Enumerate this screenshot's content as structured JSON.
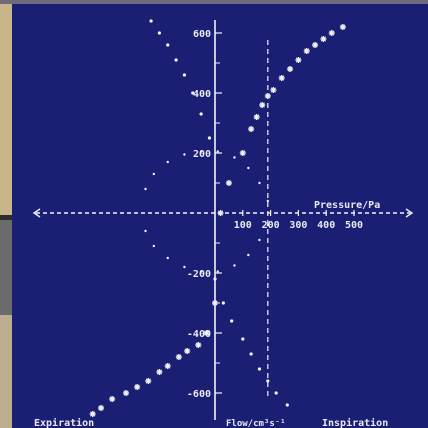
{
  "chart_data": {
    "type": "scatter",
    "title": "",
    "xlabel": "Pressure/Pa",
    "ylabel": "Flow/cm³s⁻¹",
    "bottom_left_label": "Expiration",
    "bottom_right_label": "Inspiration",
    "xlim": [
      -530,
      600
    ],
    "ylim": [
      -680,
      650
    ],
    "x_ticks": [
      100,
      200,
      300,
      400,
      500
    ],
    "y_ticks": [
      600,
      400,
      200,
      -200,
      -400,
      -600
    ],
    "x_tick_labels": [
      "100",
      "200",
      "300",
      "400",
      "500"
    ],
    "y_tick_labels": [
      "600",
      "400",
      "200",
      "-200",
      "-400",
      "-600"
    ],
    "grid": false,
    "colors": {
      "background": "#1b1f74",
      "ink": "#f2f2f8"
    },
    "series": [
      {
        "marker": "star",
        "values": [
          {
            "x": -440,
            "y": -670
          },
          {
            "x": -410,
            "y": -650
          },
          {
            "x": -370,
            "y": -620
          },
          {
            "x": -320,
            "y": -600
          },
          {
            "x": -280,
            "y": -580
          },
          {
            "x": -240,
            "y": -560
          },
          {
            "x": -200,
            "y": -530
          },
          {
            "x": -170,
            "y": -510
          },
          {
            "x": -130,
            "y": -480
          },
          {
            "x": -100,
            "y": -460
          },
          {
            "x": -60,
            "y": -440
          },
          {
            "x": -30,
            "y": -400
          },
          {
            "x": 0,
            "y": -300
          },
          {
            "x": 20,
            "y": 0
          },
          {
            "x": 50,
            "y": 100
          },
          {
            "x": 100,
            "y": 200
          },
          {
            "x": 130,
            "y": 280
          },
          {
            "x": 150,
            "y": 320
          },
          {
            "x": 170,
            "y": 360
          },
          {
            "x": 190,
            "y": 390
          },
          {
            "x": 210,
            "y": 410
          },
          {
            "x": 240,
            "y": 450
          },
          {
            "x": 270,
            "y": 480
          },
          {
            "x": 300,
            "y": 510
          },
          {
            "x": 330,
            "y": 540
          },
          {
            "x": 360,
            "y": 560
          },
          {
            "x": 390,
            "y": 580
          },
          {
            "x": 420,
            "y": 600
          },
          {
            "x": 460,
            "y": 620
          }
        ]
      },
      {
        "marker": "dot",
        "values": [
          {
            "x": -230,
            "y": 640
          },
          {
            "x": -200,
            "y": 600
          },
          {
            "x": -170,
            "y": 560
          },
          {
            "x": -140,
            "y": 510
          },
          {
            "x": -110,
            "y": 460
          },
          {
            "x": -80,
            "y": 400
          },
          {
            "x": -50,
            "y": 330
          },
          {
            "x": -20,
            "y": 250
          },
          {
            "x": 0,
            "y": -220
          },
          {
            "x": 30,
            "y": -300
          },
          {
            "x": 60,
            "y": -360
          },
          {
            "x": 100,
            "y": -420
          },
          {
            "x": 130,
            "y": -470
          },
          {
            "x": 160,
            "y": -520
          },
          {
            "x": 190,
            "y": -560
          },
          {
            "x": 220,
            "y": -600
          },
          {
            "x": 260,
            "y": -640
          }
        ]
      },
      {
        "marker": "dot",
        "values": [
          {
            "x": -250,
            "y": 80
          },
          {
            "x": -220,
            "y": 130
          },
          {
            "x": -170,
            "y": 170
          },
          {
            "x": -110,
            "y": 195
          },
          {
            "x": -50,
            "y": 205
          },
          {
            "x": 10,
            "y": 205
          },
          {
            "x": 70,
            "y": 185
          },
          {
            "x": 120,
            "y": 150
          },
          {
            "x": 160,
            "y": 100
          },
          {
            "x": 190,
            "y": 40
          },
          {
            "x": -250,
            "y": -60
          },
          {
            "x": -220,
            "y": -110
          },
          {
            "x": -170,
            "y": -150
          },
          {
            "x": -110,
            "y": -180
          },
          {
            "x": -50,
            "y": -195
          },
          {
            "x": 10,
            "y": -195
          },
          {
            "x": 70,
            "y": -175
          },
          {
            "x": 120,
            "y": -140
          },
          {
            "x": 160,
            "y": -90
          },
          {
            "x": 190,
            "y": -40
          }
        ]
      }
    ]
  }
}
